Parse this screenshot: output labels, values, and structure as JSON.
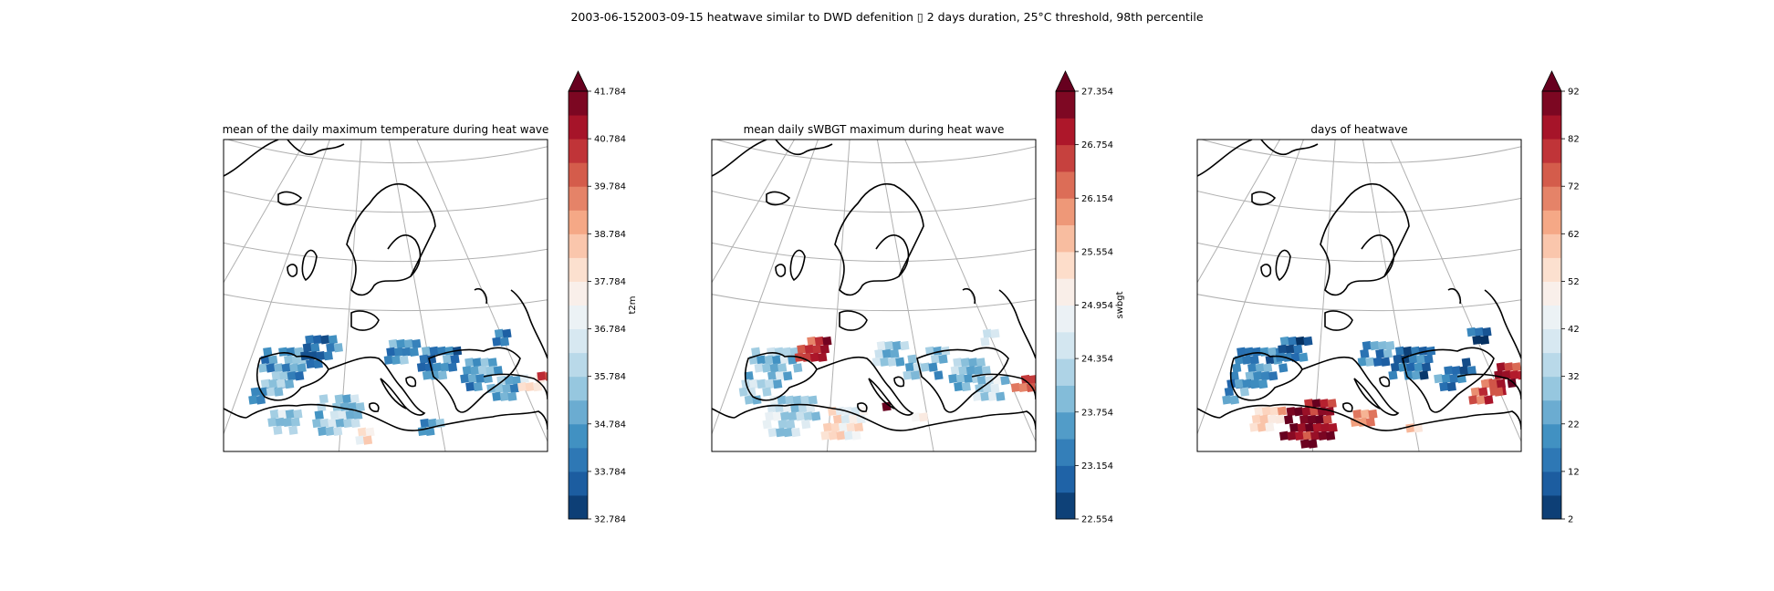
{
  "suptitle": "2003-06-152003-09-15 heatwave similar to DWD defenition ▯ 2 days duration, 25°C threshold, 98th percentile",
  "panels": [
    {
      "title": "mean of the daily maximum temperature during heat wave",
      "colorbar": {
        "label": "t2m",
        "min": 32.784,
        "max": 41.784,
        "ticks": [
          "41.784",
          "40.784",
          "39.784",
          "38.784",
          "37.784",
          "36.784",
          "35.784",
          "34.784",
          "33.784",
          "32.784"
        ],
        "extend": "max"
      }
    },
    {
      "title": "mean daily sWBGT maximum during heat wave",
      "colorbar": {
        "label": "swbgt",
        "min": 22.554,
        "max": 27.354,
        "ticks": [
          "27.354",
          "26.754",
          "26.154",
          "25.554",
          "24.954",
          "24.354",
          "23.754",
          "23.154",
          "22.554"
        ],
        "extend": "max"
      }
    },
    {
      "title": "days of heatwave",
      "colorbar": {
        "label": "",
        "min": 2,
        "max": 92,
        "ticks": [
          "92",
          "82",
          "72",
          "62",
          "52",
          "42",
          "32",
          "22",
          "12",
          "2"
        ],
        "extend": "max"
      }
    }
  ],
  "colormap": "RdBu_r",
  "colors": {
    "dark_blue": "#053061",
    "blue": "#2166ac",
    "light_blue": "#92c5de",
    "white": "#f7f7f7",
    "light_red": "#f4a582",
    "red": "#d6604d",
    "dark_red": "#67001f"
  }
}
